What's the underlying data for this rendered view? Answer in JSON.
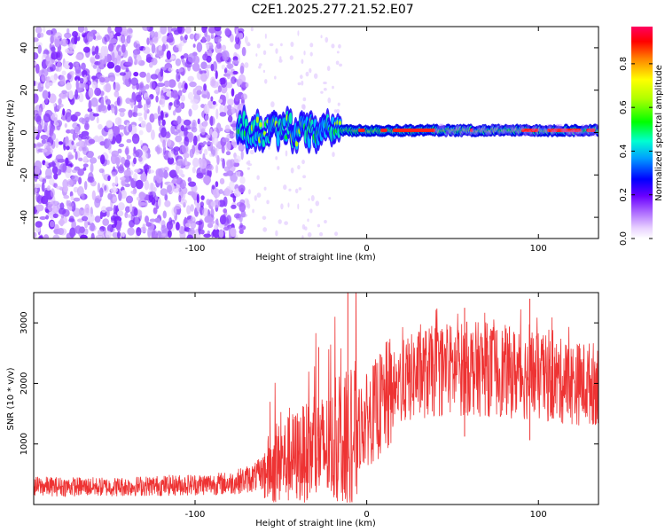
{
  "title": "C2E1.2025.277.21.52.E07",
  "chart_data": [
    {
      "type": "heatmap",
      "name": "spectrogram",
      "xlabel": "Height of straight line (km)",
      "ylabel": "Frequency (Hz)",
      "xlim": [
        -194,
        135
      ],
      "ylim": [
        -50,
        50
      ],
      "xticks": [
        -100,
        0,
        100
      ],
      "yticks": [
        -40,
        -20,
        0,
        20,
        40
      ],
      "noise_region_km": [
        -194,
        -70
      ],
      "signal_start_km": -75,
      "signal_center_hz": 1,
      "colorbar": {
        "label": "Normalized spectral amplitude",
        "range": [
          0,
          0.97
        ],
        "ticks": [
          0.0,
          0.2,
          0.4,
          0.6,
          0.8
        ],
        "tick_labels": [
          "0.0",
          "0.2",
          "0.4",
          "0.6",
          "0.8"
        ],
        "colors": [
          "#ffffff",
          "#e0c0ff",
          "#8a2be2",
          "#2f00ff",
          "#0000ff",
          "#00c0ff",
          "#00ffb0",
          "#00ff00",
          "#a0ff00",
          "#ffff00",
          "#ff8000",
          "#ff0000",
          "#ff0050"
        ]
      }
    },
    {
      "type": "line",
      "name": "snr",
      "xlabel": "Height of straight line (km)",
      "ylabel": "SNR (10 * v/v)",
      "xlim": [
        -194,
        135
      ],
      "ylim": [
        0,
        3500
      ],
      "xticks": [
        -100,
        0,
        100
      ],
      "yticks": [
        1000,
        2000,
        3000
      ],
      "color": "#ee3333",
      "envelope": [
        {
          "x": -194,
          "y": 300
        },
        {
          "x": -150,
          "y": 290
        },
        {
          "x": -110,
          "y": 320
        },
        {
          "x": -80,
          "y": 350
        },
        {
          "x": -65,
          "y": 450
        },
        {
          "x": -50,
          "y": 700
        },
        {
          "x": -35,
          "y": 850
        },
        {
          "x": -20,
          "y": 950
        },
        {
          "x": -10,
          "y": 1100
        },
        {
          "x": 0,
          "y": 1400
        },
        {
          "x": 10,
          "y": 1700
        },
        {
          "x": 20,
          "y": 2000
        },
        {
          "x": 30,
          "y": 2150
        },
        {
          "x": 40,
          "y": 2200
        },
        {
          "x": 60,
          "y": 2250
        },
        {
          "x": 80,
          "y": 2200
        },
        {
          "x": 100,
          "y": 2100
        },
        {
          "x": 120,
          "y": 2000
        },
        {
          "x": 135,
          "y": 2000
        }
      ],
      "notable_spikes": [
        {
          "x": -11,
          "y": 3500
        },
        {
          "x": -28,
          "y": 2600
        },
        {
          "x": 95,
          "y": 3400
        },
        {
          "x": 57,
          "y": 3250
        }
      ]
    }
  ]
}
